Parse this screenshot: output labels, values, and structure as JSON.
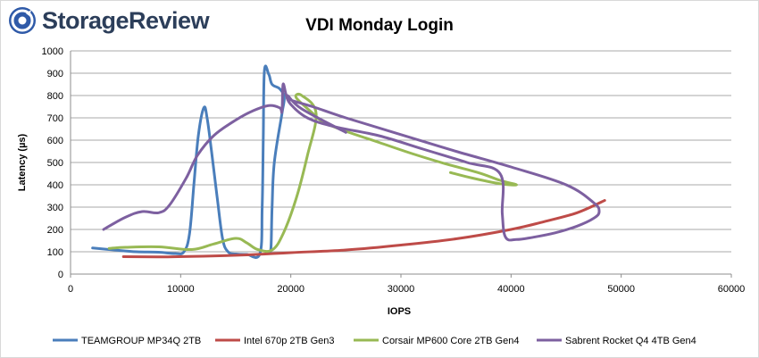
{
  "brand": {
    "name": "StorageReview",
    "accent": "#2f5aa8"
  },
  "chart_data": {
    "type": "line",
    "title": "VDI Monday Login",
    "xlabel": "IOPS",
    "ylabel": "Latency (µs)",
    "xlim": [
      0,
      60000
    ],
    "ylim": [
      0,
      1000
    ],
    "xticks": [
      0,
      10000,
      20000,
      30000,
      40000,
      50000,
      60000
    ],
    "yticks": [
      0,
      100,
      200,
      300,
      400,
      500,
      600,
      700,
      800,
      900,
      1000
    ],
    "grid": true,
    "legend_position": "bottom",
    "series": [
      {
        "name": "TEAMGROUP MP34Q 2TB",
        "color": "#4a7ebb",
        "points": [
          [
            2000,
            117
          ],
          [
            4000,
            108
          ],
          [
            6000,
            100
          ],
          [
            8000,
            98
          ],
          [
            9500,
            92
          ],
          [
            10300,
            100
          ],
          [
            10800,
            180
          ],
          [
            11200,
            400
          ],
          [
            11600,
            620
          ],
          [
            12100,
            745
          ],
          [
            12400,
            700
          ],
          [
            12800,
            550
          ],
          [
            13300,
            350
          ],
          [
            13800,
            160
          ],
          [
            14300,
            100
          ],
          [
            15000,
            90
          ],
          [
            16000,
            88
          ],
          [
            17200,
            92
          ],
          [
            17400,
            300
          ],
          [
            17500,
            600
          ],
          [
            17600,
            910
          ],
          [
            18000,
            895
          ],
          [
            18300,
            850
          ],
          [
            19000,
            830
          ],
          [
            19400,
            790
          ],
          [
            19200,
            720
          ],
          [
            18500,
            500
          ],
          [
            18300,
            300
          ],
          [
            18200,
            120
          ],
          [
            18000,
            95
          ]
        ]
      },
      {
        "name": "Intel 670p 2TB Gen3",
        "color": "#be4b48",
        "points": [
          [
            4800,
            78
          ],
          [
            8000,
            77
          ],
          [
            12000,
            80
          ],
          [
            16000,
            86
          ],
          [
            20000,
            96
          ],
          [
            25000,
            108
          ],
          [
            30000,
            130
          ],
          [
            35000,
            158
          ],
          [
            40000,
            200
          ],
          [
            43000,
            235
          ],
          [
            46000,
            275
          ],
          [
            48500,
            330
          ]
        ]
      },
      {
        "name": "Corsair MP600 Core 2TB Gen4",
        "color": "#98b954",
        "points": [
          [
            3500,
            115
          ],
          [
            5000,
            120
          ],
          [
            8000,
            122
          ],
          [
            11000,
            110
          ],
          [
            13000,
            135
          ],
          [
            15000,
            160
          ],
          [
            16000,
            140
          ],
          [
            17000,
            110
          ],
          [
            18300,
            108
          ],
          [
            19300,
            180
          ],
          [
            20500,
            340
          ],
          [
            21500,
            530
          ],
          [
            22300,
            720
          ],
          [
            21000,
            800
          ],
          [
            20500,
            790
          ],
          [
            22000,
            720
          ],
          [
            23000,
            680
          ],
          [
            25000,
            640
          ],
          [
            28000,
            590
          ],
          [
            31000,
            540
          ],
          [
            34000,
            495
          ],
          [
            37000,
            455
          ],
          [
            39000,
            420
          ],
          [
            40500,
            400
          ],
          [
            39000,
            405
          ],
          [
            36500,
            430
          ],
          [
            34500,
            455
          ]
        ]
      },
      {
        "name": "Sabrent Rocket Q4 4TB Gen4",
        "color": "#7d60a0",
        "points": [
          [
            3000,
            200
          ],
          [
            5000,
            255
          ],
          [
            6500,
            280
          ],
          [
            8000,
            275
          ],
          [
            9000,
            310
          ],
          [
            10500,
            430
          ],
          [
            11500,
            530
          ],
          [
            13000,
            620
          ],
          [
            15000,
            690
          ],
          [
            16500,
            730
          ],
          [
            18000,
            755
          ],
          [
            19000,
            745
          ],
          [
            19200,
            730
          ],
          [
            19300,
            850
          ],
          [
            19600,
            800
          ],
          [
            20000,
            780
          ],
          [
            22000,
            750
          ],
          [
            25000,
            700
          ],
          [
            30000,
            625
          ],
          [
            35000,
            550
          ],
          [
            40000,
            480
          ],
          [
            45000,
            400
          ],
          [
            47500,
            320
          ],
          [
            48000,
            280
          ],
          [
            47500,
            250
          ],
          [
            46000,
            215
          ],
          [
            44000,
            185
          ],
          [
            42000,
            165
          ],
          [
            40500,
            155
          ],
          [
            39500,
            165
          ],
          [
            39200,
            270
          ],
          [
            39000,
            450
          ],
          [
            36000,
            500
          ],
          [
            32000,
            560
          ],
          [
            28000,
            620
          ],
          [
            24000,
            660
          ],
          [
            21500,
            700
          ],
          [
            20000,
            760
          ],
          [
            19700,
            800
          ],
          [
            21000,
            740
          ],
          [
            25000,
            635
          ]
        ]
      }
    ]
  }
}
